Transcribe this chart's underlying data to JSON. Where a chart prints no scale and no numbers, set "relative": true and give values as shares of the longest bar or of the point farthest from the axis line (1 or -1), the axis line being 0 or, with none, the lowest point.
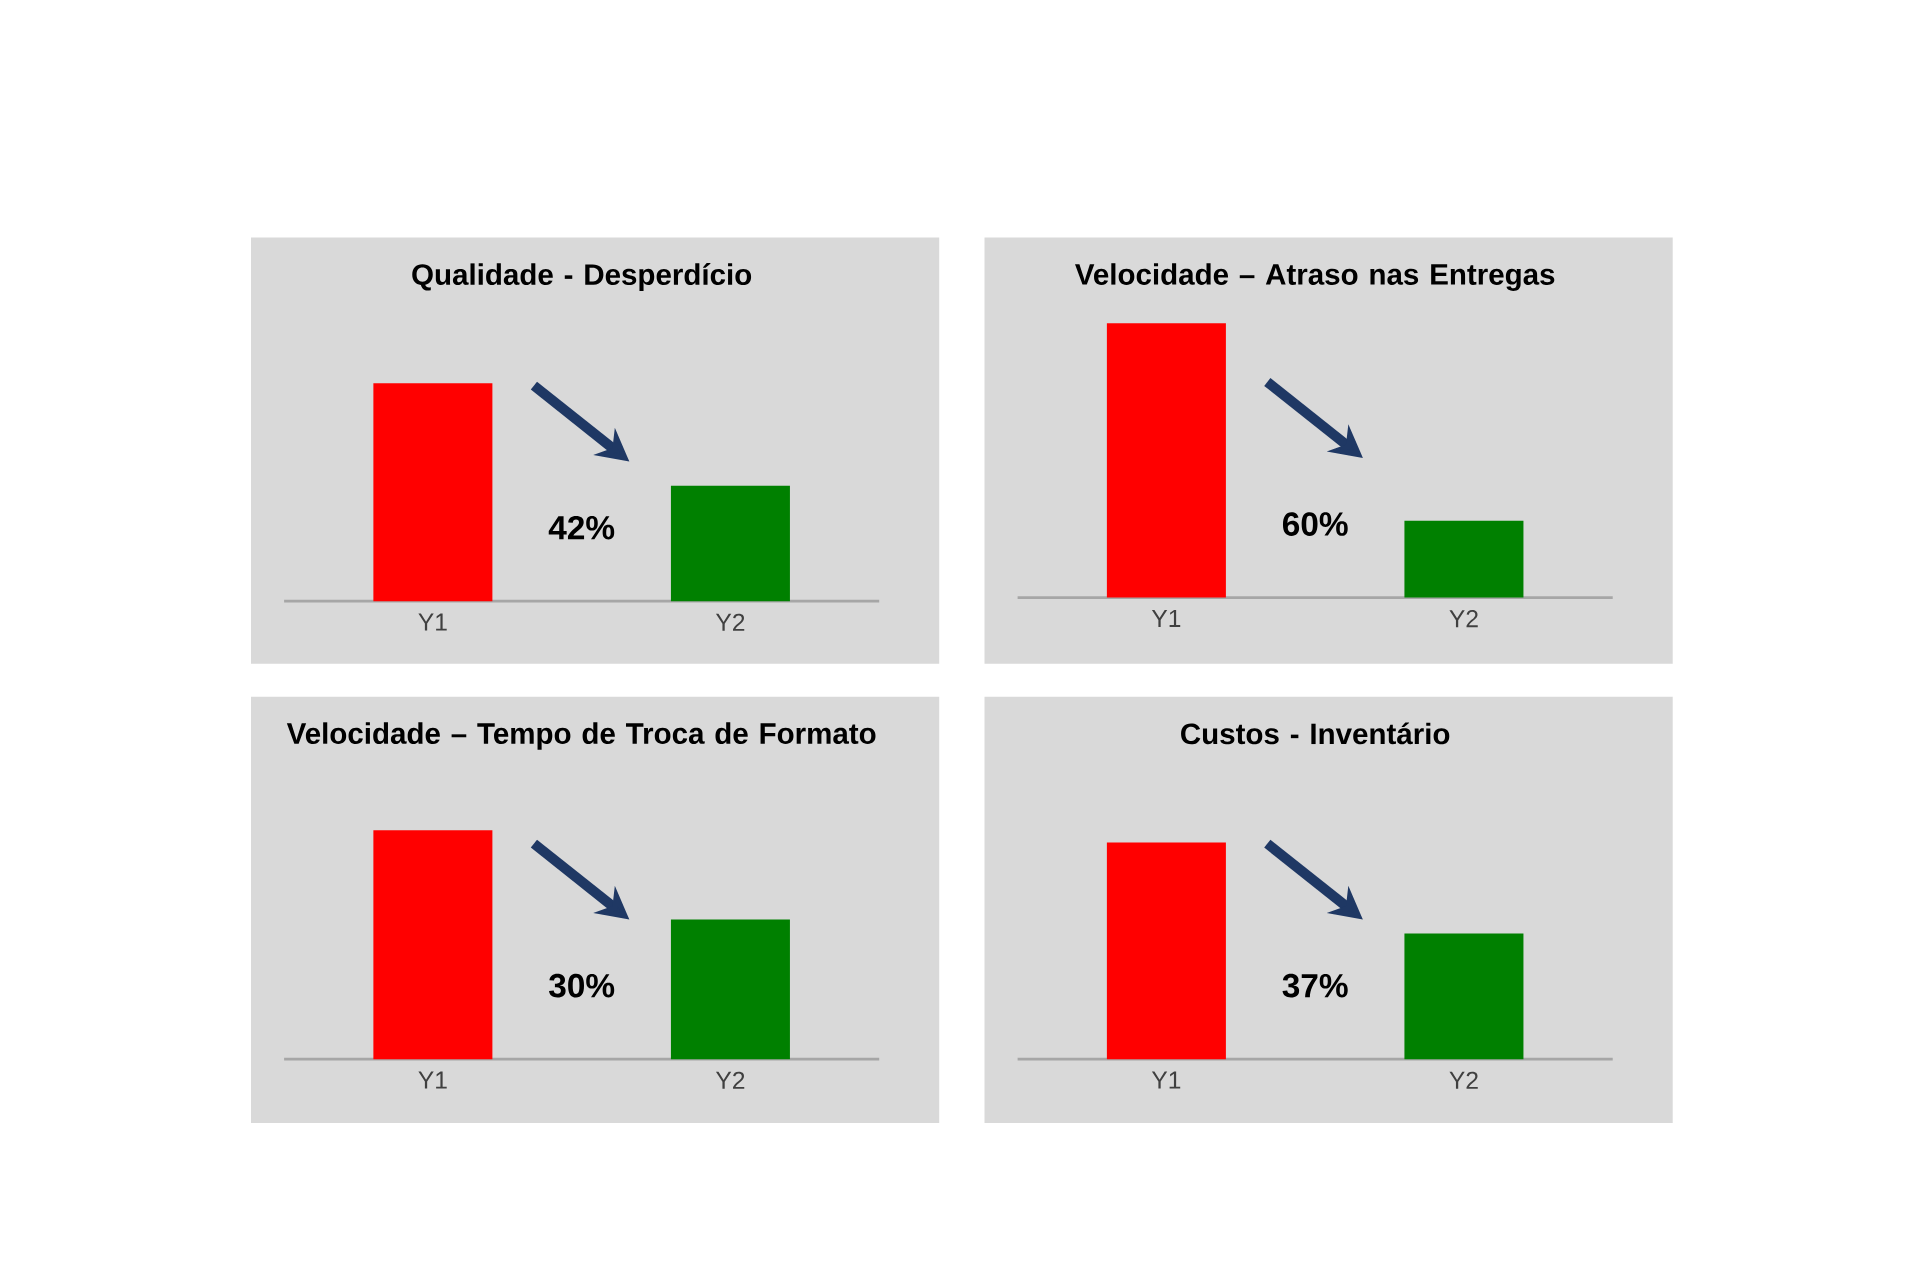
{
  "chart_data": [
    {
      "type": "bar",
      "title": "Qualidade - Desperdício",
      "categories": [
        "Y1",
        "Y2"
      ],
      "values": [
        1,
        0.53
      ],
      "colors": [
        "#ff0000",
        "#008000"
      ],
      "relative": true,
      "annotations": [
        "42%"
      ]
    },
    {
      "type": "bar",
      "title": "Velocidade – Atraso nas Entregas",
      "categories": [
        "Y1",
        "Y2"
      ],
      "values": [
        1,
        0.28
      ],
      "colors": [
        "#ff0000",
        "#008000"
      ],
      "relative": true,
      "annotations": [
        "60%"
      ]
    },
    {
      "type": "bar",
      "title": "Velocidade – Tempo de Troca de Formato",
      "categories": [
        "Y1",
        "Y2"
      ],
      "values": [
        1,
        0.61
      ],
      "colors": [
        "#ff0000",
        "#008000"
      ],
      "relative": true,
      "annotations": [
        "30%"
      ]
    },
    {
      "type": "bar",
      "title": "Custos - Inventário",
      "categories": [
        "Y1",
        "Y2"
      ],
      "values": [
        1,
        0.58
      ],
      "colors": [
        "#ff0000",
        "#008000"
      ],
      "relative": true,
      "annotations": [
        "37%"
      ]
    }
  ]
}
